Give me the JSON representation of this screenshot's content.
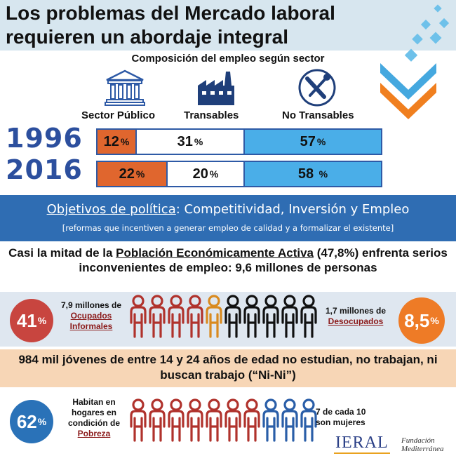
{
  "title": {
    "line1": "Los problemas del Mercado laboral",
    "line2": "requieren un abordaje integral"
  },
  "composition": {
    "title": "Composición del empleo según sector",
    "sectors": [
      {
        "label": "Sector Público",
        "icon": "bank-building-icon"
      },
      {
        "label": "Transables",
        "icon": "factory-icon"
      },
      {
        "label": "No Transables",
        "icon": "tools-icon"
      }
    ],
    "rows": [
      {
        "year": "1996",
        "publico": "12",
        "transables": "31",
        "no_transables": "57",
        "publico_pct": 12,
        "transables_pct": 31,
        "no_transables_pct": 57
      },
      {
        "year": "2016",
        "publico": "22",
        "transables": "20",
        "no_transables": "58",
        "publico_pct": 22,
        "transables_pct": 20,
        "no_transables_pct": 58
      }
    ],
    "pct": "%"
  },
  "objectives": {
    "label": "Objetivos de política",
    "colon": ": Competitividad, Inversión y Empleo",
    "sub": "[reformas que incentiven a generar empleo de calidad y a formalizar el existente]"
  },
  "pea": {
    "part1": "Casi la mitad de la ",
    "highlight": "Población Económicamente Activa",
    "part2": " (47,8%) enfrenta serios inconvenientes de empleo: 9,6 millones de personas"
  },
  "informal": {
    "percent": "41",
    "pct": "%",
    "note_top": "7,9 millones de",
    "note_hl": "Ocupados Informales"
  },
  "unemployed": {
    "percent": "8,5",
    "pct": "%",
    "note_top": "1,7 millones de",
    "note_hl": "Desocupados"
  },
  "nini": {
    "text": "984 mil jóvenes de entre 14 y 24 años de edad no estudian, no trabajan, ni buscan trabajo (“Ni-Ni”)"
  },
  "poverty": {
    "percent": "62",
    "pct": "%",
    "note_top": "Habitan en hogares en condición de",
    "note_hl": "Pobreza",
    "women": "7 de cada 10 son mujeres"
  },
  "logos": {
    "ieral": "IERAL",
    "fundacion_line1": "Fundación",
    "fundacion_line2": "Mediterránea"
  },
  "colors": {
    "title_band": "#d7e6ef",
    "orange": "#e0662e",
    "light_blue": "#4aaee8",
    "dark_blue": "#2f6db3",
    "red_circle": "#c8453f",
    "blue_circle": "#2a72b8",
    "person_red": "#b0322c",
    "person_gold": "#d98a1f",
    "person_black": "#111111",
    "person_blue": "#2a5ea8"
  },
  "people_rows": [
    {
      "colors": [
        "person_red",
        "person_red",
        "person_red",
        "person_red",
        "person_gold",
        "person_black",
        "person_black",
        "person_black",
        "person_black",
        "person_black"
      ]
    },
    {
      "colors": [
        "person_red",
        "person_red",
        "person_red",
        "person_red",
        "person_red",
        "person_red",
        "person_red",
        "person_blue",
        "person_blue",
        "person_blue"
      ]
    }
  ]
}
